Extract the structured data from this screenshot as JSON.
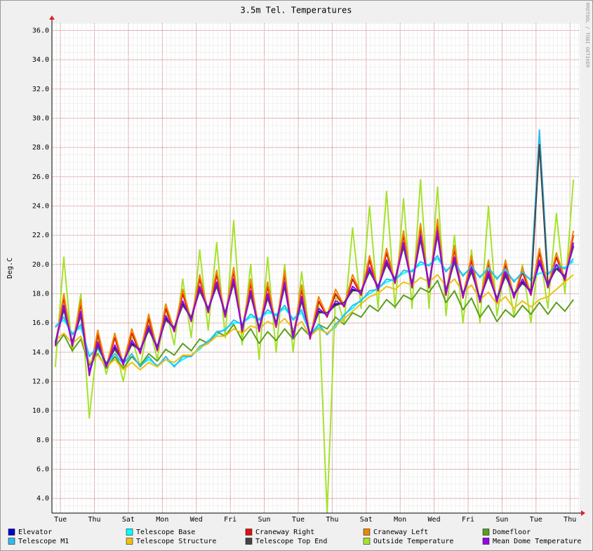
{
  "chart_data": {
    "type": "line",
    "title": "3.5m Tel. Temperatures",
    "y_label": "Deg.C",
    "watermark": "RRDTOOL / TOBI OETIKER",
    "xlim": [
      0,
      31.07
    ],
    "ylim": [
      3.0,
      36.5
    ],
    "grid": true,
    "xticks": [
      {
        "value": 0.5,
        "label": "Tue"
      },
      {
        "value": 2.5,
        "label": "Thu"
      },
      {
        "value": 4.5,
        "label": "Sat"
      },
      {
        "value": 6.5,
        "label": "Mon"
      },
      {
        "value": 8.5,
        "label": "Wed"
      },
      {
        "value": 10.5,
        "label": "Fri"
      },
      {
        "value": 12.5,
        "label": "Sun"
      },
      {
        "value": 14.5,
        "label": "Tue"
      },
      {
        "value": 16.5,
        "label": "Thu"
      },
      {
        "value": 18.5,
        "label": "Sat"
      },
      {
        "value": 20.5,
        "label": "Mon"
      },
      {
        "value": 22.5,
        "label": "Wed"
      },
      {
        "value": 24.5,
        "label": "Fri"
      },
      {
        "value": 26.5,
        "label": "Sun"
      },
      {
        "value": 28.5,
        "label": "Tue"
      },
      {
        "value": 30.5,
        "label": "Thu"
      }
    ],
    "yticks": [
      {
        "value": 4,
        "label": "4.0"
      },
      {
        "value": 6,
        "label": "6.0"
      },
      {
        "value": 8,
        "label": "8.0"
      },
      {
        "value": 10,
        "label": "10.0"
      },
      {
        "value": 12,
        "label": "12.0"
      },
      {
        "value": 14,
        "label": "14.0"
      },
      {
        "value": 16,
        "label": "16.0"
      },
      {
        "value": 18,
        "label": "18.0"
      },
      {
        "value": 20,
        "label": "20.0"
      },
      {
        "value": 22,
        "label": "22.0"
      },
      {
        "value": 24,
        "label": "24.0"
      },
      {
        "value": 26,
        "label": "26.0"
      },
      {
        "value": 28,
        "label": "28.0"
      },
      {
        "value": 30,
        "label": "30.0"
      },
      {
        "value": 32,
        "label": "32.0"
      },
      {
        "value": 34,
        "label": "34.0"
      },
      {
        "value": 36,
        "label": "36.0"
      }
    ],
    "x": [
      0.2,
      0.7,
      1.2,
      1.7,
      2.2,
      2.7,
      3.2,
      3.7,
      4.2,
      4.7,
      5.2,
      5.7,
      6.2,
      6.7,
      7.2,
      7.7,
      8.2,
      8.7,
      9.2,
      9.7,
      10.2,
      10.7,
      11.2,
      11.7,
      12.2,
      12.7,
      13.2,
      13.7,
      14.2,
      14.7,
      15.2,
      15.7,
      16.2,
      16.7,
      17.2,
      17.7,
      18.2,
      18.7,
      19.2,
      19.7,
      20.2,
      20.7,
      21.2,
      21.7,
      22.2,
      22.7,
      23.2,
      23.7,
      24.2,
      24.7,
      25.2,
      25.7,
      26.2,
      26.7,
      27.2,
      27.7,
      28.2,
      28.7,
      29.2,
      29.7,
      30.2,
      30.7
    ],
    "series": [
      {
        "name": "Elevator",
        "color": "#0000cc",
        "values": [
          14.6,
          17,
          14.6,
          16.6,
          12.6,
          14.5,
          13.1,
          14.3,
          13.3,
          14.6,
          14.1,
          15.6,
          14.3,
          16.3,
          15.6,
          17.3,
          16.3,
          18.3,
          16.9,
          18.6,
          16.6,
          18.8,
          15.6,
          18,
          15.6,
          17.8,
          15.9,
          18.6,
          15.1,
          17.6,
          15.1,
          16.8,
          16.6,
          17.3,
          17.3,
          18.3,
          18.1,
          19.6,
          18.4,
          20.1,
          18.9,
          21.3,
          18.6,
          21.8,
          18.6,
          22.1,
          18.1,
          20.3,
          17.9,
          19.6,
          17.6,
          19.3,
          17.6,
          19.3,
          17.9,
          18.8,
          18.1,
          20.1,
          18.6,
          19.8,
          19.1,
          21.3
        ]
      },
      {
        "name": "Telescope Base",
        "color": "#00ffff",
        "values": [
          15.8,
          16.2,
          15.3,
          15.7,
          13.8,
          14.2,
          13.3,
          13.7,
          13.3,
          13.7,
          13.1,
          13.5,
          13.1,
          13.5,
          13.1,
          13.5,
          13.8,
          14.2,
          14.8,
          15.2,
          15.6,
          16,
          16,
          16.4,
          16.3,
          16.7,
          16.6,
          17,
          16.3,
          16.7,
          15.3,
          15.7,
          15.3,
          15.7,
          16.6,
          17,
          17.6,
          18,
          18.4,
          18.8,
          19,
          19.4,
          19.6,
          20,
          20,
          20.4,
          19.6,
          20,
          19.3,
          19.7,
          19.2,
          19.6,
          19.1,
          19.5,
          18.9,
          19.3,
          19,
          19.4,
          19.4,
          19.8,
          19.8,
          20.2
        ]
      },
      {
        "name": "Craneway Right",
        "color": "#e01010",
        "values": [
          14.4,
          17.7,
          14.4,
          17.3,
          12.4,
          15.2,
          12.9,
          15,
          13.1,
          15.3,
          13.9,
          16.3,
          14.1,
          17,
          15.4,
          18,
          16.1,
          19,
          16.7,
          19.3,
          16.4,
          19.5,
          15.4,
          18.7,
          15.4,
          18.5,
          15.7,
          19.3,
          14.9,
          18.3,
          14.9,
          17.5,
          16.4,
          18,
          17.1,
          19,
          17.9,
          20.3,
          18.2,
          20.8,
          18.7,
          22,
          18.4,
          22.5,
          18.4,
          22.8,
          17.9,
          21,
          17.7,
          20.3,
          17.4,
          20,
          17.4,
          20,
          17.7,
          19.5,
          17.9,
          20.8,
          18.4,
          20.5,
          18.9,
          22
        ]
      },
      {
        "name": "Craneway Left",
        "color": "#ee8800",
        "values": [
          14.5,
          18,
          14.5,
          17.6,
          12.5,
          15.5,
          13,
          15.3,
          13.2,
          15.6,
          14,
          16.6,
          14.2,
          17.3,
          15.5,
          18.3,
          16.2,
          19.3,
          16.8,
          19.6,
          16.5,
          19.8,
          15.5,
          19,
          15.5,
          18.8,
          15.8,
          19.6,
          15,
          18.6,
          15,
          17.8,
          16.5,
          18.3,
          17.2,
          19.3,
          18,
          20.6,
          18.3,
          21.1,
          18.8,
          22.3,
          18.5,
          22.8,
          18.5,
          23.1,
          18,
          21.3,
          17.8,
          20.6,
          17.5,
          20.3,
          17.5,
          20.3,
          17.8,
          19.8,
          18,
          21.1,
          18.5,
          20.8,
          19,
          22.3
        ]
      },
      {
        "name": "Domefloor",
        "color": "#5c9e1e",
        "values": [
          14.4,
          15.2,
          14.1,
          14.9,
          13.1,
          13.9,
          12.9,
          13.7,
          12.9,
          13.7,
          13.1,
          13.9,
          13.4,
          14.2,
          13.8,
          14.6,
          14.1,
          14.9,
          14.6,
          15.4,
          15.1,
          15.9,
          14.8,
          15.6,
          14.6,
          15.4,
          14.8,
          15.6,
          14.9,
          15.7,
          15.1,
          15.9,
          15.6,
          16.4,
          15.9,
          16.7,
          16.4,
          17.2,
          16.8,
          17.6,
          17.1,
          17.9,
          17.6,
          18.4,
          18.1,
          18.9,
          17.4,
          18.2,
          16.9,
          17.7,
          16.4,
          17.2,
          16.1,
          16.9,
          16.4,
          17.2,
          16.6,
          17.4,
          16.6,
          17.4,
          16.8,
          17.6
        ]
      },
      {
        "name": "Telescope M1",
        "color": "#33bbee",
        "values": [
          15.7,
          16.4,
          15.2,
          15.9,
          13.7,
          14.4,
          13.2,
          13.9,
          13.2,
          13.9,
          13,
          13.7,
          13,
          13.7,
          13,
          13.7,
          13.7,
          14.4,
          14.7,
          15.4,
          15.5,
          16.2,
          15.9,
          16.6,
          16.2,
          16.9,
          16.5,
          17.2,
          16.2,
          16.9,
          15.2,
          15.9,
          15.2,
          15.9,
          16.5,
          17.2,
          17.5,
          18.2,
          18.3,
          19,
          18.9,
          19.6,
          19.5,
          20.2,
          19.9,
          20.6,
          19.5,
          20.2,
          19.2,
          19.9,
          19.1,
          19.8,
          19,
          19.7,
          18.8,
          19.5,
          18.9,
          29.2,
          19.3,
          20,
          19.7,
          20.4
        ]
      },
      {
        "name": "Telescope Structure",
        "color": "#f0c010",
        "values": [
          14.8,
          15.3,
          14.6,
          15.1,
          13.3,
          13.8,
          13,
          13.5,
          12.8,
          13.3,
          12.8,
          13.3,
          13,
          13.5,
          13.3,
          13.8,
          13.8,
          14.3,
          14.6,
          15.1,
          15.1,
          15.6,
          15.3,
          15.8,
          15.6,
          16.1,
          15.8,
          16.3,
          15.6,
          16.1,
          15.1,
          15.6,
          15.3,
          15.8,
          16.3,
          16.8,
          17.3,
          17.8,
          18,
          18.5,
          18.3,
          18.8,
          18.6,
          19.1,
          18.8,
          19.3,
          18.5,
          19,
          18.1,
          18.6,
          17.6,
          18.1,
          17.3,
          17.8,
          17,
          17.5,
          17.1,
          17.6,
          17.8,
          18.3,
          18.8,
          19.3
        ]
      },
      {
        "name": "Telescope Top End",
        "color": "#444444",
        "values": [
          14.7,
          16.9,
          14.7,
          16.5,
          12.7,
          14.4,
          13.2,
          14.2,
          13.4,
          14.5,
          14.2,
          15.5,
          14.4,
          16.2,
          15.7,
          17.2,
          16.4,
          18.2,
          17,
          18.5,
          16.7,
          18.7,
          15.7,
          17.9,
          15.7,
          17.7,
          16,
          18.5,
          15.2,
          17.5,
          15.2,
          16.7,
          16.7,
          17.2,
          17.4,
          18.2,
          18.2,
          19.5,
          18.5,
          20,
          19,
          21.2,
          18.7,
          21.7,
          18.7,
          22,
          18.2,
          20.2,
          18,
          19.5,
          17.7,
          19.2,
          17.7,
          19.2,
          18,
          18.7,
          18.2,
          28.2,
          18.7,
          19.7,
          19.2,
          21.2
        ]
      },
      {
        "name": "Outside Temperature",
        "color": "#a6e22e",
        "values": [
          13,
          20.5,
          14,
          18,
          9.5,
          15,
          12.5,
          14.5,
          12,
          15,
          13,
          16,
          13.5,
          17,
          14.5,
          19,
          15,
          21,
          15.5,
          21.5,
          15,
          23,
          14.5,
          20,
          13.5,
          20.5,
          14,
          20,
          14,
          19.5,
          15,
          17.5,
          3,
          18,
          16,
          22.5,
          17,
          24,
          17,
          25,
          17,
          24.5,
          17,
          25.8,
          17,
          25.3,
          16.5,
          22,
          16,
          21,
          16,
          24,
          16.5,
          20,
          16.5,
          20,
          16,
          21,
          17,
          23.5,
          18,
          25.8
        ]
      },
      {
        "name": "Mean Dome Temperature",
        "color": "#9900ee",
        "values": [
          14.5,
          17.2,
          14.5,
          16.8,
          12.5,
          14.7,
          13,
          14.5,
          13.2,
          14.8,
          14,
          15.8,
          14.2,
          16.5,
          15.5,
          17.5,
          16.2,
          18.5,
          16.8,
          18.8,
          16.5,
          19,
          15.5,
          18.2,
          15.5,
          18,
          15.8,
          18.8,
          15,
          17.8,
          15,
          17,
          16.5,
          17.5,
          17.2,
          18.5,
          18,
          19.8,
          18.3,
          20.3,
          18.8,
          21.5,
          18.5,
          22,
          18.5,
          22.3,
          18,
          20.5,
          17.8,
          19.8,
          17.5,
          19.5,
          17.5,
          19.5,
          17.8,
          19,
          18,
          20.3,
          18.5,
          20,
          19,
          21.5
        ]
      }
    ]
  }
}
